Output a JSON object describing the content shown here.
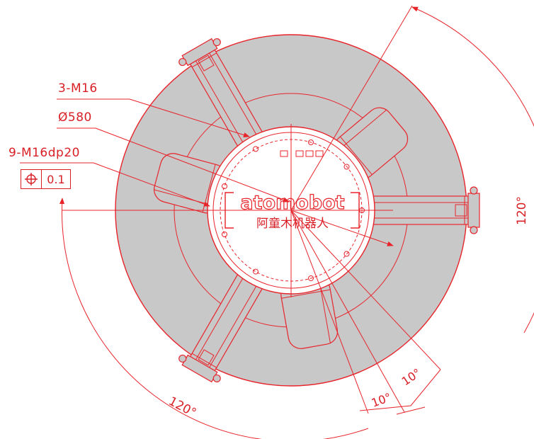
{
  "callouts": {
    "threads": "3-M16",
    "diameter": "Ø580",
    "holes": "9-M16dp20",
    "tolerance_value": "0.1"
  },
  "brand": {
    "logo_text": "atomobot",
    "logo_cn": "阿童木机器人"
  },
  "angles": {
    "right_sweep": "120°",
    "bottom_sweep": "120°",
    "small_left": "10°",
    "small_right": "10°"
  },
  "icons": {
    "position_tolerance": "position-symbol-icon"
  },
  "colors": {
    "line": "#e8242b",
    "fill": "#c8c8c8",
    "background": "#ffffff"
  }
}
